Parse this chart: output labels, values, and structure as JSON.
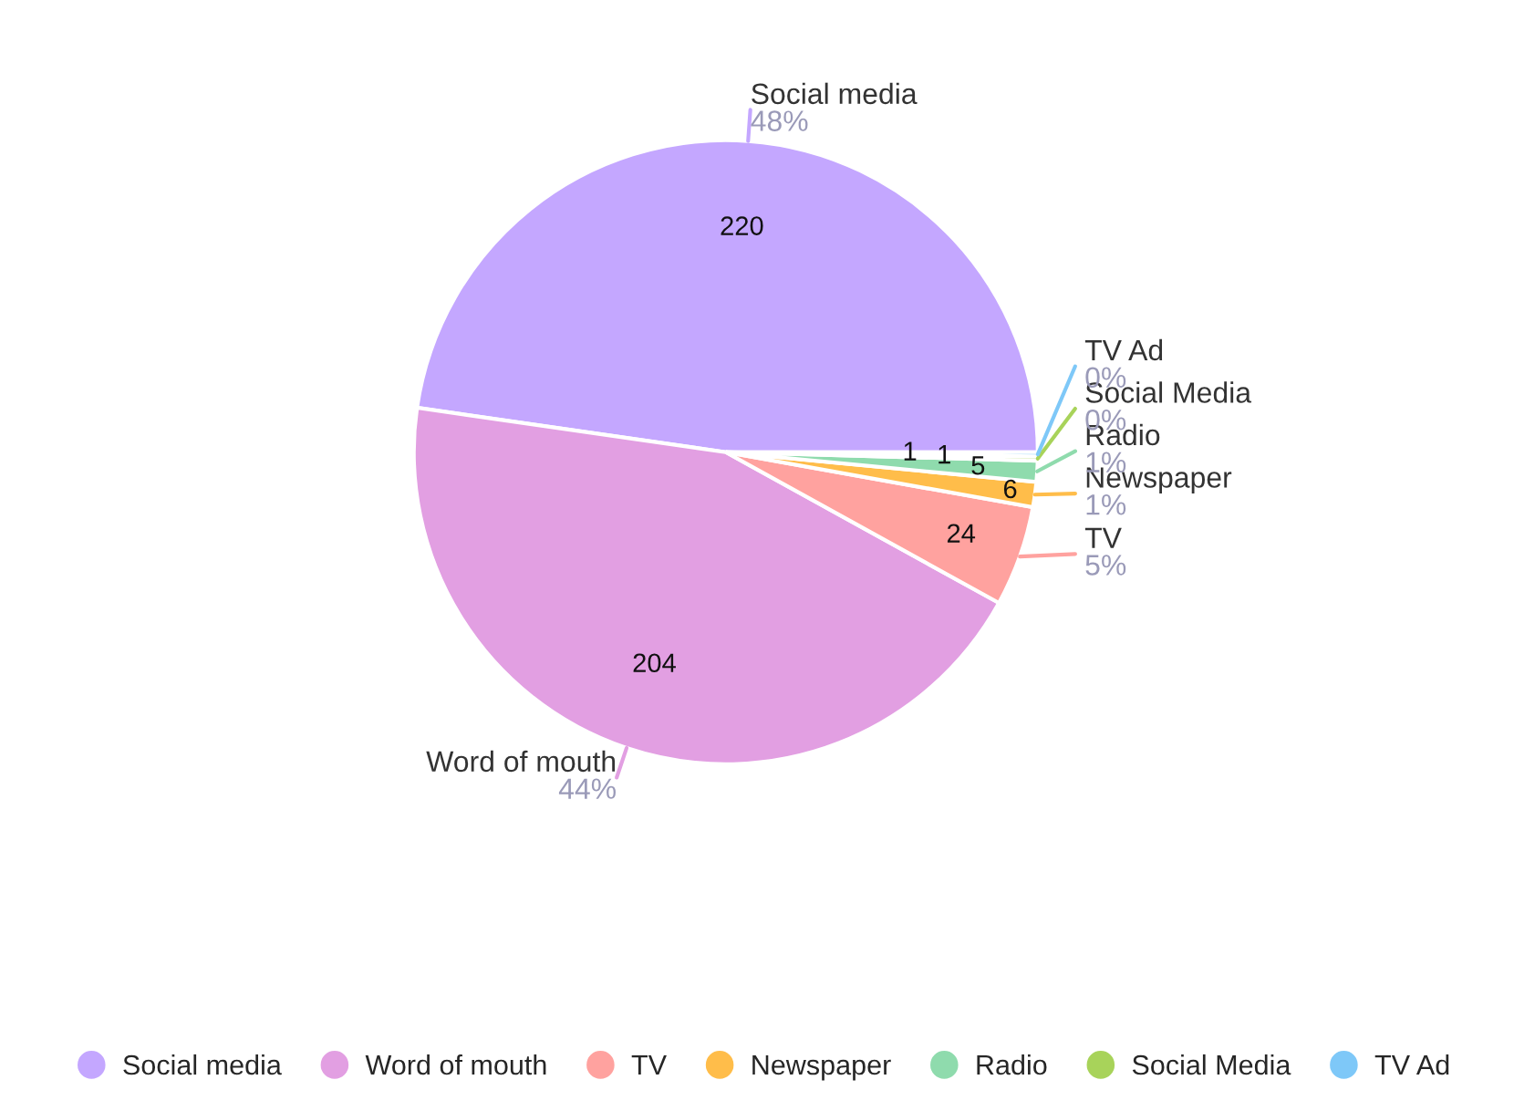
{
  "chart_data": {
    "type": "pie",
    "categories": [
      "Social media",
      "Word of mouth",
      "TV",
      "Newspaper",
      "Radio",
      "Social Media",
      "TV Ad"
    ],
    "values": [
      220,
      204,
      24,
      6,
      5,
      1,
      1
    ],
    "colors": [
      "#c4a7ff",
      "#e29fe2",
      "#ffa29f",
      "#ffbd4a",
      "#8fdbad",
      "#a8d35a",
      "#7ec8f8"
    ],
    "data_labels": true,
    "annotations": [
      {
        "text": "48%",
        "x": "Social media"
      },
      {
        "text": "44%",
        "x": "Word of mouth"
      },
      {
        "text": "5%",
        "x": "TV"
      },
      {
        "text": "1%",
        "x": "Newspaper"
      },
      {
        "text": "1%",
        "x": "Radio"
      },
      {
        "text": "0%",
        "x": "Social Media"
      },
      {
        "text": "0%",
        "x": "TV Ad"
      }
    ],
    "legend": "bottom"
  }
}
